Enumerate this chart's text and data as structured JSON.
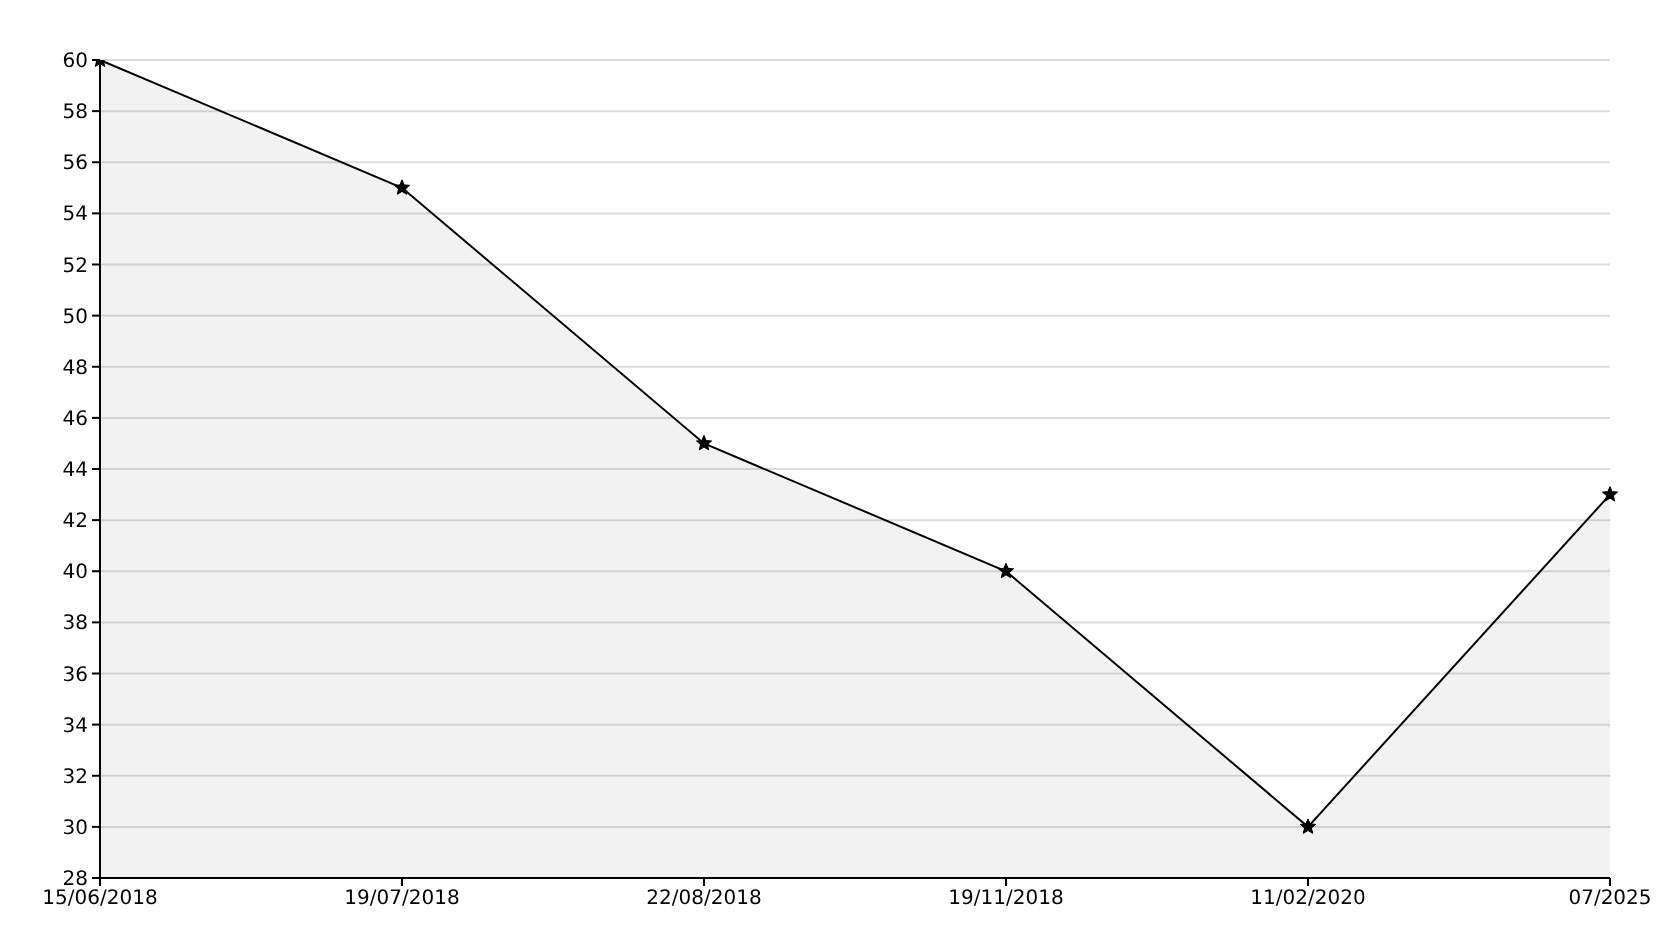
{
  "chart_data": {
    "type": "area",
    "categories": [
      "15/06/2018",
      "19/07/2018",
      "22/08/2018",
      "19/11/2018",
      "11/02/2020",
      "07/2025"
    ],
    "series": [
      {
        "color": "#000000",
        "values": [
          60,
          55,
          45,
          40,
          30,
          43
        ]
      }
    ],
    "ylim": [
      28,
      60
    ],
    "yticks": [
      28,
      30,
      32,
      34,
      36,
      38,
      40,
      42,
      44,
      46,
      48,
      50,
      52,
      54,
      56,
      58,
      60
    ],
    "grid": "y",
    "marker": "star"
  }
}
